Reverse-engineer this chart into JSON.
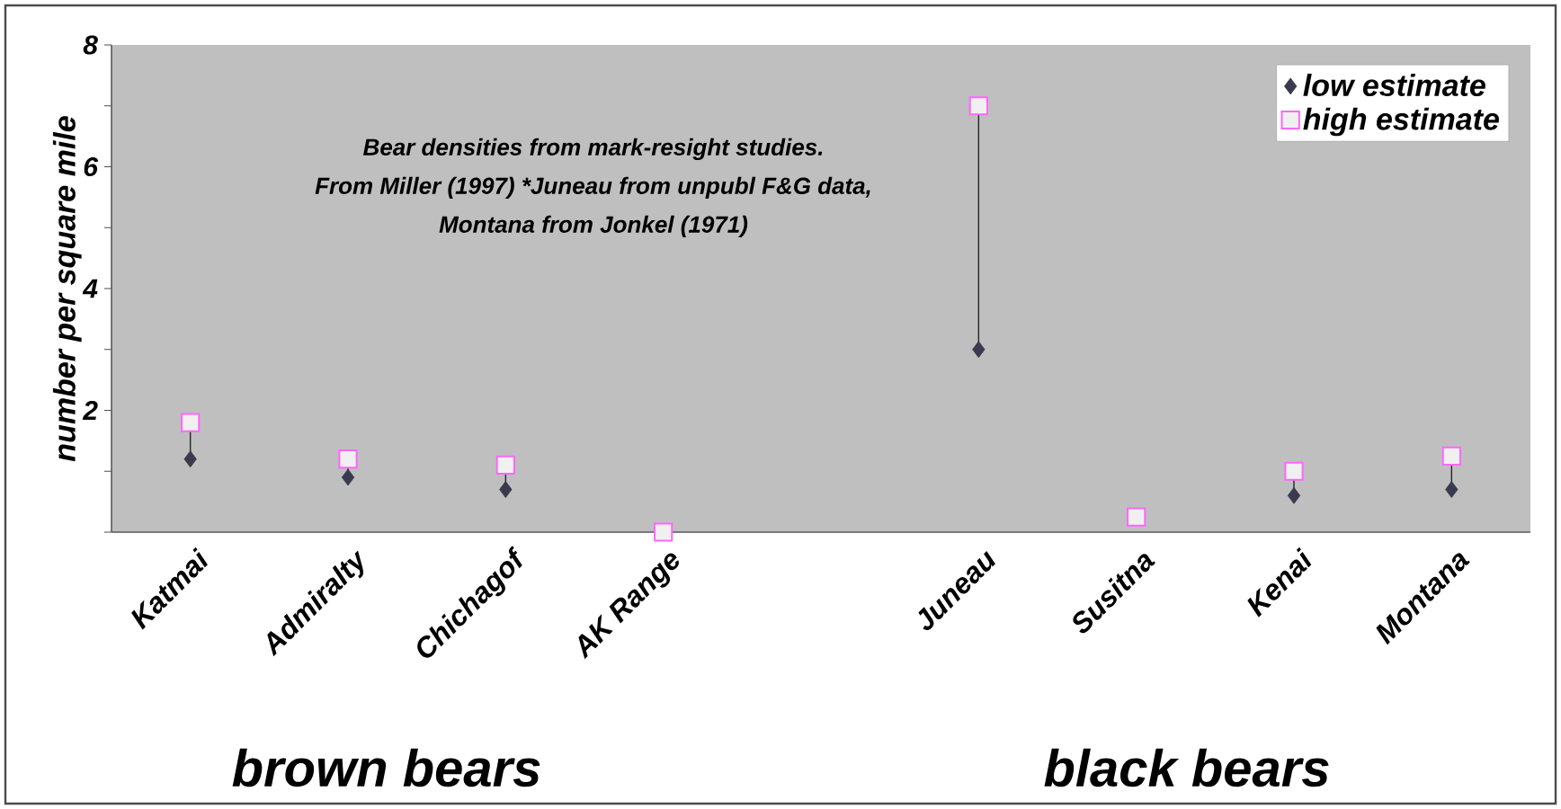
{
  "chart_data": {
    "type": "scatter",
    "categories": [
      "Katmai",
      "Admiralty",
      "Chichagof",
      "AK Range",
      null,
      "Juneau",
      "Susitna",
      "Kenai",
      "Montana"
    ],
    "series": [
      {
        "name": "low estimate",
        "color": "#3a3a4e",
        "marker": "diamond",
        "values": [
          1.2,
          0.9,
          0.7,
          null,
          null,
          3,
          null,
          0.6,
          0.7
        ]
      },
      {
        "name": "high estimate",
        "color": "#ff66ff",
        "marker": "square",
        "values": [
          1.8,
          1.2,
          1.1,
          0,
          null,
          7,
          0.25,
          1.0,
          1.25
        ]
      }
    ],
    "ylabel": "number per square mile",
    "ylim": [
      0,
      8
    ],
    "yticks": [
      {
        "value": 0,
        "label": null
      },
      {
        "value": 1,
        "label": null
      },
      2,
      {
        "value": 3,
        "label": null
      },
      4,
      {
        "value": 5,
        "label": null
      },
      6,
      {
        "value": 7,
        "label": null
      },
      8
    ],
    "legend": "top right",
    "annotations": [
      "Bear densities from mark-resight studies.",
      "From Miller (1997) *Juneau from unpubl F&G data,",
      "Montana from Jonkel (1971)",
      "brown bears",
      "black bears"
    ]
  }
}
